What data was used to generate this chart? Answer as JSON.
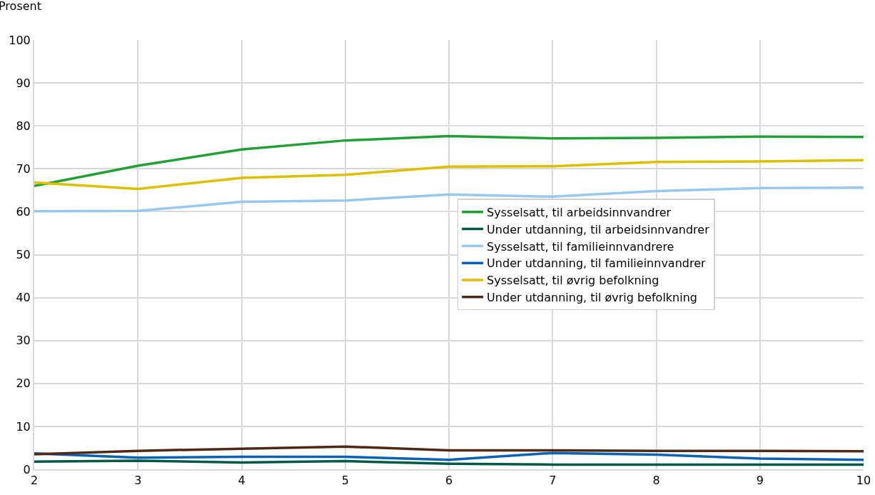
{
  "chart_data": {
    "type": "line",
    "ylabel": "Prosent",
    "x": [
      2,
      3,
      4,
      5,
      6,
      7,
      8,
      9,
      10
    ],
    "xlim": [
      2,
      10
    ],
    "xticks": [
      2,
      3,
      4,
      5,
      6,
      7,
      8,
      9,
      10
    ],
    "ylim": [
      0,
      100
    ],
    "yticks": [
      0,
      10,
      20,
      30,
      40,
      50,
      60,
      70,
      80,
      90,
      100
    ],
    "grid": true,
    "legend": "right",
    "marker": "none",
    "line_style": "solid",
    "series": [
      {
        "name": "Sysselsatt, til arbeidsinnvandrer",
        "color": "#21a038",
        "values": [
          66,
          70.7,
          74.5,
          76.6,
          77.6,
          77.1,
          77.2,
          77.5,
          77.4
        ]
      },
      {
        "name": "Under utdanning, til arbeidsinnvandrer",
        "color": "#005a46",
        "values": [
          1.8,
          2.0,
          1.6,
          1.9,
          1.3,
          1.1,
          1.1,
          1.1,
          1.1
        ]
      },
      {
        "name": "Sysselsatt, til familieinnvandrere",
        "color": "#98c8ee",
        "values": [
          60.1,
          60.2,
          62.3,
          62.6,
          64.0,
          63.5,
          64.8,
          65.5,
          65.6
        ]
      },
      {
        "name": "Under utdanning, til familieinnvandrer",
        "color": "#0a62b4",
        "values": [
          3.7,
          2.7,
          2.9,
          2.9,
          2.2,
          3.8,
          3.4,
          2.5,
          2.2
        ]
      },
      {
        "name": "Sysselsatt, til øvrig befolkning",
        "color": "#dcc000",
        "values": [
          66.8,
          65.3,
          67.9,
          68.6,
          70.5,
          70.6,
          71.6,
          71.7,
          72.0
        ]
      },
      {
        "name": "Under utdanning, til øvrig befolkning",
        "color": "#4e2a16",
        "values": [
          3.5,
          4.3,
          4.8,
          5.3,
          4.4,
          4.4,
          4.3,
          4.3,
          4.2
        ]
      }
    ]
  }
}
